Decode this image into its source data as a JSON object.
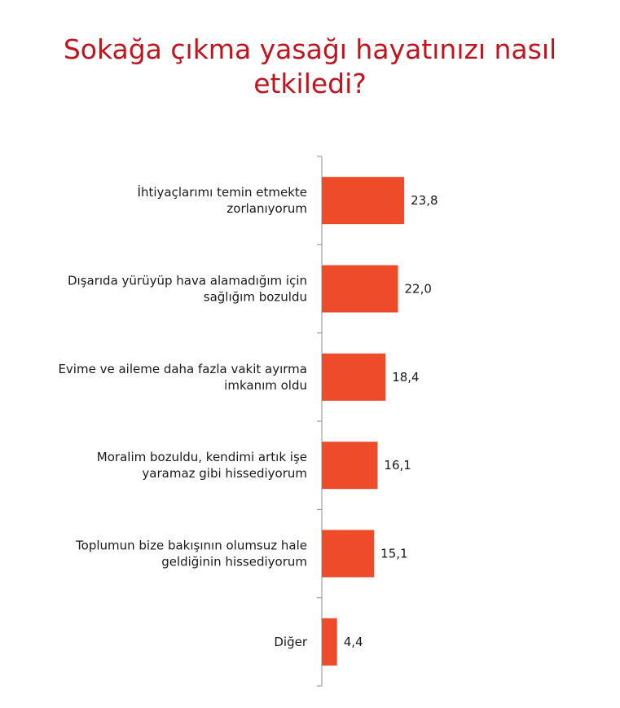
{
  "title_lines": [
    "Sokağa çıkma yasağı hayatınızı nasıl",
    "etkiledi?"
  ],
  "colors": {
    "title": "#c0141e",
    "bar": "#ee4b2b",
    "axis": "#8c8c8c",
    "text": "#1a1a1a"
  },
  "chart_data": {
    "type": "bar",
    "orientation": "horizontal",
    "title": "Sokağa çıkma yasağı hayatınızı nasıl etkiledi?",
    "categories": [
      [
        "İhtiyaçlarımı temin etmekte",
        "zorlanıyorum"
      ],
      [
        "Dışarıda yürüyüp hava alamadığım için",
        "sağlığım bozuldu"
      ],
      [
        "Evime ve aileme daha fazla vakit ayırma",
        "imkanım oldu"
      ],
      [
        "Moralim bozuldu, kendimi artık işe",
        "yaramaz gibi hissediyorum"
      ],
      [
        "Toplumun bize bakışının olumsuz hale",
        "geldiğinin hissediyorum"
      ],
      [
        "Diğer"
      ]
    ],
    "values": [
      23.8,
      22.0,
      18.4,
      16.1,
      15.1,
      4.4
    ],
    "value_labels": [
      "23,8",
      "22,0",
      "18,4",
      "16,1",
      "15,1",
      "4,4"
    ],
    "xlim": [
      0,
      100
    ],
    "grid": false,
    "legend": "none"
  }
}
